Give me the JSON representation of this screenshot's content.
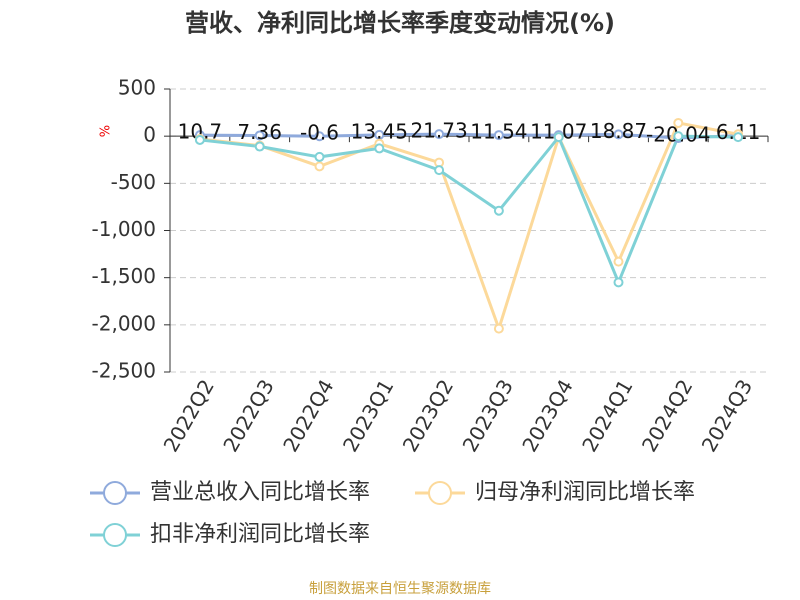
{
  "chart_data": {
    "type": "line",
    "title": "营收、净利同比增长率季度变动情况(%)",
    "y_label": "%",
    "source": "制图数据来自恒生聚源数据库",
    "categories": [
      "2022Q2",
      "2022Q3",
      "2022Q4",
      "2023Q1",
      "2023Q2",
      "2023Q3",
      "2023Q4",
      "2024Q1",
      "2024Q2",
      "2024Q3"
    ],
    "series": [
      {
        "name": "营业总收入同比增长率",
        "color": "#8faadc",
        "values": [
          10.7,
          7.36,
          -0.6,
          13.45,
          21.73,
          11.54,
          11.07,
          18.87,
          -20.04,
          6.11
        ],
        "data_labels": true
      },
      {
        "name": "归母净利润同比增长率",
        "color": "#fcd99a",
        "values": [
          -30,
          -100,
          -320,
          -80,
          -280,
          -2040,
          -10,
          -1330,
          140,
          20
        ]
      },
      {
        "name": "扣非净利润同比增长率",
        "color": "#7fd1d6",
        "values": [
          -40,
          -110,
          -220,
          -130,
          -360,
          -790,
          -10,
          -1550,
          0,
          -10
        ]
      }
    ],
    "ylim": [
      -2500,
      500
    ],
    "yticks": [
      500,
      0,
      -500,
      {
        "value": -1000,
        "label": "-1,000"
      },
      {
        "value": -1500,
        "label": "-1,500"
      },
      {
        "value": -2000,
        "label": "-2,000"
      },
      {
        "value": -2500,
        "label": "-2,500"
      }
    ],
    "grid": true
  }
}
